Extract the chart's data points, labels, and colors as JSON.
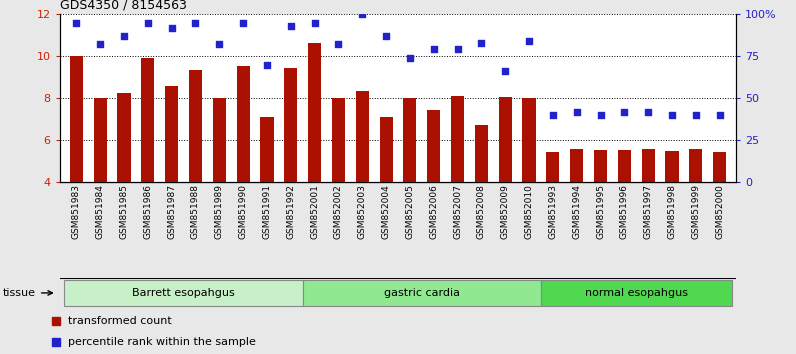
{
  "title": "GDS4350 / 8154563",
  "samples": [
    "GSM851983",
    "GSM851984",
    "GSM851985",
    "GSM851986",
    "GSM851987",
    "GSM851988",
    "GSM851989",
    "GSM851990",
    "GSM851991",
    "GSM851992",
    "GSM852001",
    "GSM852002",
    "GSM852003",
    "GSM852004",
    "GSM852005",
    "GSM852006",
    "GSM852007",
    "GSM852008",
    "GSM852009",
    "GSM852010",
    "GSM851993",
    "GSM851994",
    "GSM851995",
    "GSM851996",
    "GSM851997",
    "GSM851998",
    "GSM851999",
    "GSM852000"
  ],
  "bar_values": [
    10.0,
    8.0,
    8.25,
    9.9,
    8.6,
    9.35,
    8.0,
    9.55,
    7.1,
    9.45,
    10.65,
    8.0,
    8.35,
    7.1,
    8.0,
    7.45,
    8.12,
    6.75,
    8.05,
    8.0,
    5.45,
    5.6,
    5.55,
    5.55,
    5.6,
    5.5,
    5.6,
    5.45
  ],
  "dot_values": [
    95.0,
    82.0,
    87.0,
    95.0,
    92.0,
    95.0,
    82.0,
    95.0,
    70.0,
    93.0,
    95.0,
    82.0,
    100.0,
    87.0,
    74.0,
    79.0,
    79.5,
    83.0,
    66.0,
    84.0,
    40.0,
    42.0,
    40.0,
    42.0,
    42.0,
    40.0,
    40.0,
    40.0
  ],
  "groups": [
    {
      "label": "Barrett esopahgus",
      "start": 0,
      "end": 9,
      "color": "#c8f0c8"
    },
    {
      "label": "gastric cardia",
      "start": 10,
      "end": 19,
      "color": "#90e890"
    },
    {
      "label": "normal esopahgus",
      "start": 20,
      "end": 27,
      "color": "#50d850"
    }
  ],
  "bar_color": "#aa1100",
  "dot_color": "#2222cc",
  "bar_bottom": 4.0,
  "ylim_left": [
    4,
    12
  ],
  "ylim_right": [
    0,
    100
  ],
  "yticks_left": [
    4,
    6,
    8,
    10,
    12
  ],
  "yticks_right": [
    0,
    25,
    50,
    75,
    100
  ],
  "ytick_labels_right": [
    "0",
    "25",
    "50",
    "75",
    "100%"
  ],
  "tissue_label": "tissue",
  "legend_bar": "transformed count",
  "legend_dot": "percentile rank within the sample",
  "bg_color": "#e8e8e8",
  "plot_bg": "#ffffff"
}
